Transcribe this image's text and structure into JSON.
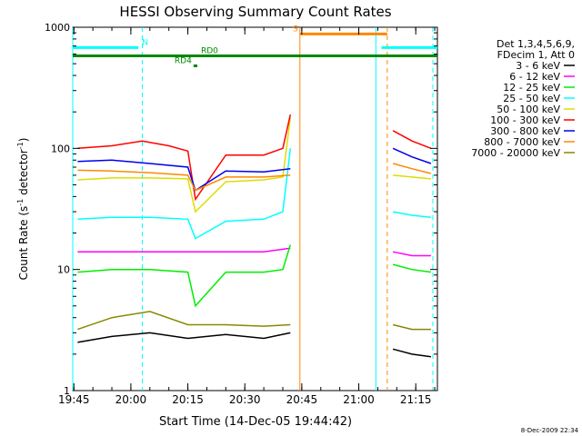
{
  "chart_data": {
    "type": "line",
    "title": "HESSI Observing Summary Count Rates",
    "xlabel": "Start Time (14-Dec-05 19:44:42)",
    "ylabel_main": "Count Rate (s",
    "ylabel_sup1": "-1",
    "ylabel_mid": " detector",
    "ylabel_sup2": "-1",
    "ylabel_end": ")",
    "yscale": "log",
    "ylim": [
      1,
      1000
    ],
    "xlim": [
      "19:44:42",
      "21:20:42"
    ],
    "x_ticks": [
      "19:45",
      "20:00",
      "20:15",
      "20:30",
      "20:45",
      "21:00",
      "21:15"
    ],
    "y_ticks": [
      {
        "value": 1,
        "label": "1"
      },
      {
        "value": 10,
        "label": "10"
      },
      {
        "value": 100,
        "label": "100"
      },
      {
        "value": 1000,
        "label": "1000"
      }
    ],
    "grid": false,
    "legend_position": "right",
    "legend_header": [
      "Det 1,3,4,5,6,9,",
      "FDecim 1, Att 0"
    ],
    "series": [
      {
        "name": "3 - 6 keV",
        "color": "#000000",
        "x": [
          "19:46",
          "19:55",
          "20:05",
          "20:15",
          "20:25",
          "20:35",
          "20:42",
          "21:09",
          "21:14",
          "21:19"
        ],
        "values": [
          2.5,
          2.8,
          3.0,
          2.7,
          2.9,
          2.7,
          3.0,
          2.2,
          2.0,
          1.9
        ]
      },
      {
        "name": "6 - 12 keV",
        "color": "#ff00ff",
        "x": [
          "19:46",
          "19:55",
          "20:05",
          "20:15",
          "20:25",
          "20:35",
          "20:42",
          "21:09",
          "21:14",
          "21:19"
        ],
        "values": [
          14,
          14,
          14,
          14,
          14,
          14,
          15,
          14,
          13,
          13
        ]
      },
      {
        "name": "12 - 25 keV",
        "color": "#00ee00",
        "x": [
          "19:46",
          "19:55",
          "20:05",
          "20:15",
          "20:17",
          "20:25",
          "20:35",
          "20:40",
          "20:42",
          "21:09",
          "21:14",
          "21:19"
        ],
        "values": [
          9.5,
          10,
          10,
          9.5,
          5,
          9.5,
          9.5,
          10,
          16,
          11,
          10,
          9.5
        ]
      },
      {
        "name": "25 - 50 keV",
        "color": "#00ffff",
        "x": [
          "19:46",
          "19:55",
          "20:05",
          "20:15",
          "20:17",
          "20:25",
          "20:35",
          "20:40",
          "20:42",
          "21:09",
          "21:14",
          "21:19"
        ],
        "values": [
          26,
          27,
          27,
          26,
          18,
          25,
          26,
          30,
          100,
          30,
          28,
          27
        ]
      },
      {
        "name": "50 - 100 keV",
        "color": "#dddd00",
        "x": [
          "19:46",
          "19:55",
          "20:05",
          "20:15",
          "20:17",
          "20:25",
          "20:35",
          "20:40",
          "20:42",
          "21:09",
          "21:14",
          "21:19"
        ],
        "values": [
          55,
          57,
          57,
          56,
          30,
          53,
          55,
          58,
          180,
          60,
          58,
          56
        ]
      },
      {
        "name": "100 - 300 keV",
        "color": "#ff0000",
        "x": [
          "19:46",
          "19:55",
          "20:03",
          "20:10",
          "20:15",
          "20:17",
          "20:25",
          "20:35",
          "20:40",
          "20:42",
          "21:09",
          "21:14",
          "21:19"
        ],
        "values": [
          100,
          105,
          115,
          105,
          95,
          38,
          88,
          88,
          100,
          190,
          140,
          115,
          100
        ]
      },
      {
        "name": "300 - 800 keV",
        "color": "#0000ee",
        "x": [
          "19:46",
          "19:55",
          "20:05",
          "20:15",
          "20:17",
          "20:25",
          "20:35",
          "20:42",
          "21:09",
          "21:14",
          "21:19"
        ],
        "values": [
          78,
          80,
          75,
          70,
          45,
          65,
          64,
          68,
          100,
          85,
          75
        ]
      },
      {
        "name": "800 - 7000 keV",
        "color": "#ff8800",
        "x": [
          "19:46",
          "19:55",
          "20:05",
          "20:15",
          "20:17",
          "20:25",
          "20:35",
          "20:42",
          "21:09",
          "21:14",
          "21:19"
        ],
        "values": [
          66,
          65,
          63,
          60,
          45,
          58,
          58,
          60,
          75,
          68,
          62
        ]
      },
      {
        "name": "7000 - 20000 keV",
        "color": "#888800",
        "x": [
          "19:46",
          "19:55",
          "20:05",
          "20:15",
          "20:25",
          "20:35",
          "20:42",
          "21:09",
          "21:14",
          "21:19"
        ],
        "values": [
          3.2,
          4.0,
          4.5,
          3.5,
          3.5,
          3.4,
          3.5,
          3.5,
          3.2,
          3.2
        ]
      }
    ],
    "attenuator_bars": [
      {
        "label": "N",
        "color": "#00ffff",
        "segments": [
          [
            "19:44:42",
            "20:02"
          ],
          [
            "21:06",
            "21:20:42"
          ]
        ],
        "value": 680
      },
      {
        "label": "RD0",
        "color": "#008800",
        "segments": [
          [
            "19:44:42",
            "21:20:42"
          ]
        ],
        "value": 580
      },
      {
        "label": "RD4",
        "color": "#008800",
        "segments": [
          [
            "20:16:30",
            "20:17:30"
          ]
        ],
        "value": 480
      },
      {
        "label": "S",
        "color": "#ff8800",
        "segments": [
          [
            "20:44:30",
            "21:07:30"
          ]
        ],
        "value": 880
      }
    ],
    "vertical_lines": [
      {
        "x": "19:44:42",
        "color": "#00ffff",
        "style": "solid"
      },
      {
        "x": "20:03",
        "color": "#00ffff",
        "style": "dashed"
      },
      {
        "x": "20:44:30",
        "color": "#ff8800",
        "style": "solid"
      },
      {
        "x": "21:04:30",
        "color": "#00ffff",
        "style": "solid"
      },
      {
        "x": "21:07:30",
        "color": "#ff8800",
        "style": "dashed"
      },
      {
        "x": "21:19:30",
        "color": "#00ffff",
        "style": "dashed"
      }
    ]
  },
  "footer_timestamp": "8-Dec-2009 22:34"
}
